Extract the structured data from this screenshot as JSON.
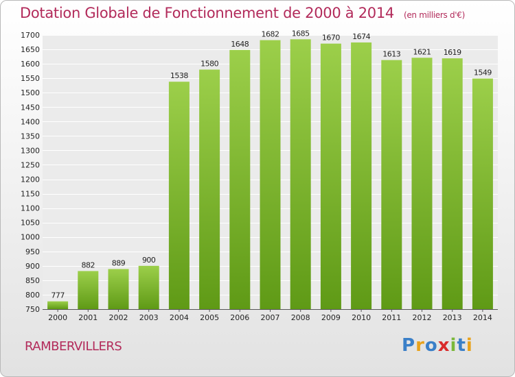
{
  "header": {
    "title": "Dotation Globale de Fonctionnement de 2000 à 2014",
    "subtitle": "(en milliers d'€)"
  },
  "footer": {
    "town": "RAMBERVILLERS",
    "logo_letters": [
      {
        "char": "P",
        "color": "#3a7fc8"
      },
      {
        "char": "r",
        "color": "#e8a21c"
      },
      {
        "char": "o",
        "color": "#3a7fc8"
      },
      {
        "char": "x",
        "color": "#d92b2b"
      },
      {
        "char": "i",
        "color": "#7ab83a"
      },
      {
        "char": "t",
        "color": "#3a7fc8"
      },
      {
        "char": "i",
        "color": "#e8a21c"
      }
    ]
  },
  "chart_data": {
    "type": "bar",
    "categories": [
      "2000",
      "2001",
      "2002",
      "2003",
      "2004",
      "2005",
      "2006",
      "2007",
      "2008",
      "2009",
      "2010",
      "2011",
      "2012",
      "2013",
      "2014"
    ],
    "values": [
      777,
      882,
      889,
      900,
      1538,
      1580,
      1648,
      1682,
      1685,
      1670,
      1674,
      1613,
      1621,
      1619,
      1549
    ],
    "ylim": [
      750,
      1700
    ],
    "ytick_step": 50,
    "grid": true,
    "bar_color_top": "#9ccf4a",
    "bar_color_bottom": "#5f9a16",
    "data_labels": true
  }
}
